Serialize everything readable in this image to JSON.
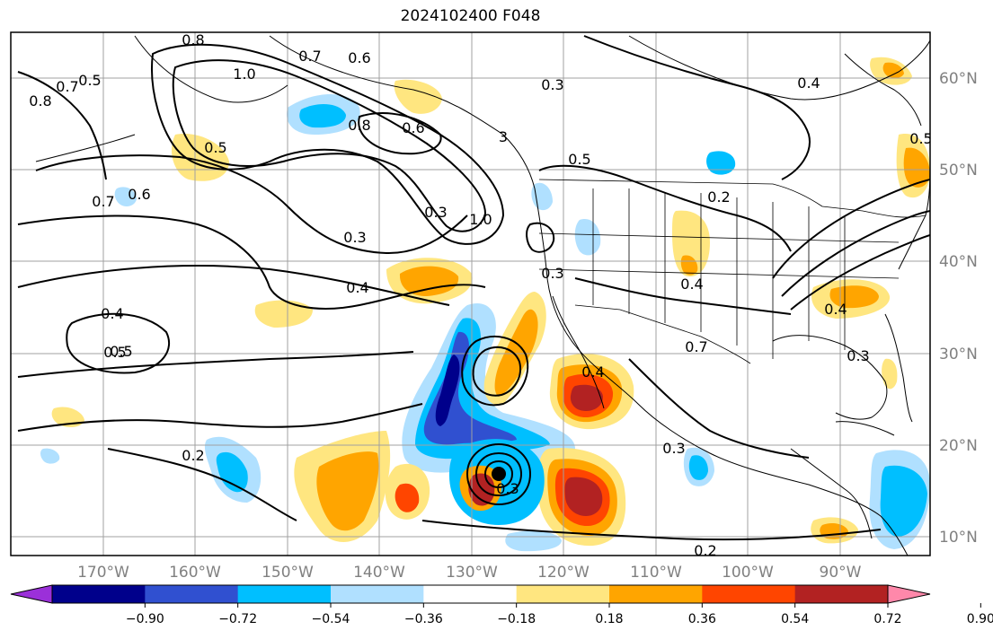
{
  "title": "2024102400 F048",
  "map": {
    "lat_labels": [
      "60°N",
      "50°N",
      "40°N",
      "30°N",
      "20°N",
      "10°N"
    ],
    "lon_labels": [
      "170°W",
      "160°W",
      "150°W",
      "140°W",
      "130°W",
      "120°W",
      "110°W",
      "100°W",
      "90°W"
    ],
    "contour_labels": [
      "0.8",
      "0.5",
      "0.7",
      "0.8",
      "1.0",
      "0.7",
      "0.6",
      "0.5",
      "0.3",
      "0.4",
      "0.5",
      "0.6",
      "0.7",
      "0.4",
      "0.8",
      "0.6",
      "3",
      "0.5",
      "0.2",
      "0.3",
      "0.3",
      "0.4",
      "1.0",
      "0.3",
      "0.4",
      "0.4",
      "0.5",
      "0.3",
      "0.7",
      "0.5",
      "0.4",
      "0.2",
      "0.3",
      "0.3",
      "0.2"
    ]
  },
  "colorbar": {
    "tick_labels": [
      "−0.90",
      "−0.72",
      "−0.54",
      "−0.36",
      "−0.18",
      "0.18",
      "0.36",
      "0.54",
      "0.72",
      "0.90"
    ],
    "colors": [
      "#9b30d9",
      "#00008b",
      "#3050d0",
      "#00bfff",
      "#b0e0ff",
      "#ffffff",
      "#ffe680",
      "#ffa500",
      "#ff4500",
      "#b22222",
      "#ff88aa"
    ]
  }
}
